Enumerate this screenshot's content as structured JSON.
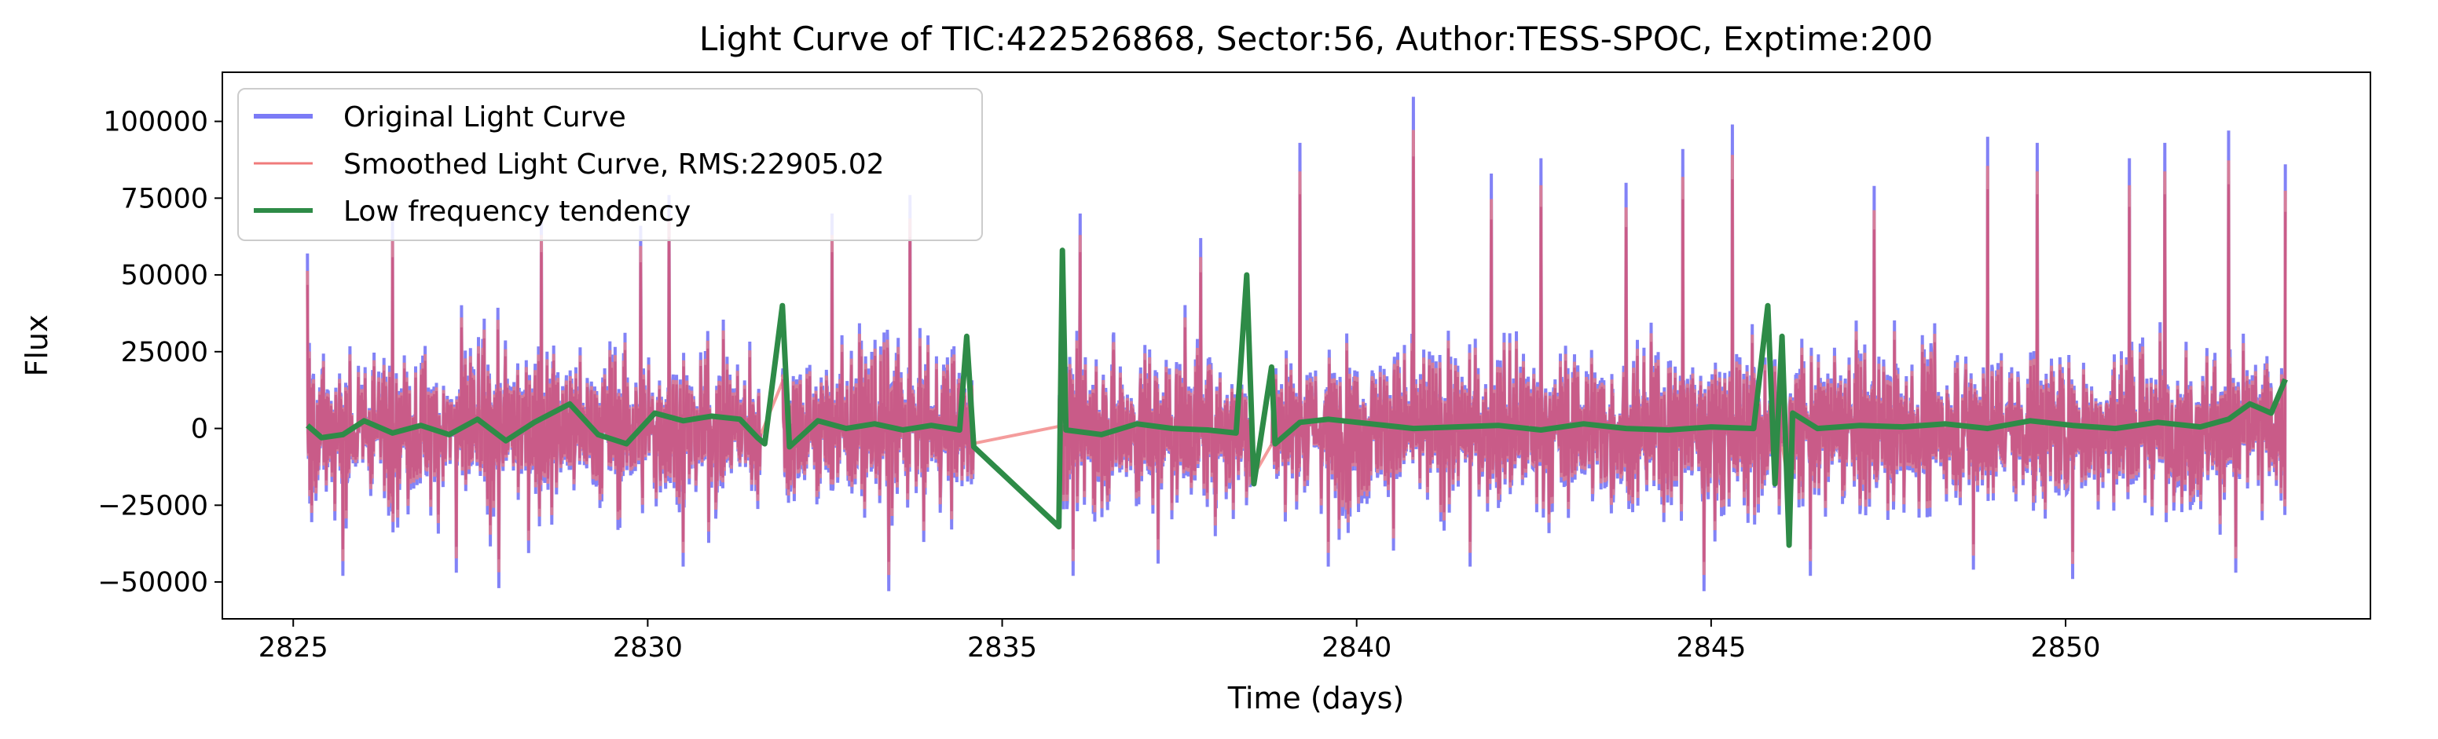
{
  "chart_data": {
    "type": "line",
    "title": "Light Curve of TIC:422526868, Sector:56, Author:TESS-SPOC, Exptime:200",
    "xlabel": "Time (days)",
    "ylabel": "Flux",
    "xlim": [
      2824.0,
      2854.3
    ],
    "ylim": [
      -62000,
      116000
    ],
    "grid": false,
    "legend_position": "top-left",
    "x_ticks": [
      2825,
      2830,
      2835,
      2840,
      2845,
      2850
    ],
    "x_tick_labels": [
      "2825",
      "2830",
      "2835",
      "2840",
      "2845",
      "2850"
    ],
    "y_ticks": [
      -50000,
      -25000,
      0,
      25000,
      50000,
      75000,
      100000
    ],
    "y_tick_labels": [
      "−50000",
      "−25000",
      "0",
      "25000",
      "50000",
      "75000",
      "100000"
    ],
    "segments": [
      [
        2825.2,
        2831.6
      ],
      [
        2831.9,
        2834.6
      ],
      [
        2835.8,
        2838.5
      ],
      [
        2838.8,
        2846.0
      ],
      [
        2846.1,
        2853.1
      ]
    ],
    "series": [
      {
        "name": "Original Light Curve",
        "color": "#7b7bf6",
        "description": "blue line, dense oscillation",
        "amplitude_envelope": {
          "min": -52000,
          "max": 108000
        },
        "peaks": [
          [
            2825.2,
            57000
          ],
          [
            2826.4,
            68000
          ],
          [
            2827.9,
            68000
          ],
          [
            2828.5,
            70000
          ],
          [
            2829.9,
            66000
          ],
          [
            2830.3,
            76000
          ],
          [
            2832.6,
            70000
          ],
          [
            2833.4,
            69000
          ],
          [
            2833.7,
            76000
          ],
          [
            2836.1,
            70000
          ],
          [
            2837.8,
            62000
          ],
          [
            2839.2,
            93000
          ],
          [
            2839.6,
            82000
          ],
          [
            2840.8,
            108000
          ],
          [
            2841.9,
            83000
          ],
          [
            2842.6,
            88000
          ],
          [
            2843.8,
            80000
          ],
          [
            2844.6,
            91000
          ],
          [
            2845.3,
            99000
          ],
          [
            2847.3,
            79000
          ],
          [
            2848.9,
            95000
          ],
          [
            2849.6,
            93000
          ],
          [
            2850.9,
            88000
          ],
          [
            2851.4,
            93000
          ],
          [
            2852.3,
            97000
          ],
          [
            2853.1,
            86000
          ]
        ],
        "troughs": [
          [
            2825.7,
            -48000
          ],
          [
            2827.3,
            -47000
          ],
          [
            2827.9,
            -52000
          ],
          [
            2830.5,
            -45000
          ],
          [
            2833.4,
            -53000
          ],
          [
            2836.0,
            -48000
          ],
          [
            2837.2,
            -44000
          ],
          [
            2839.6,
            -45000
          ],
          [
            2841.6,
            -45000
          ],
          [
            2844.9,
            -53000
          ],
          [
            2846.4,
            -48000
          ],
          [
            2848.7,
            -46000
          ],
          [
            2850.1,
            -49000
          ],
          [
            2852.4,
            -47000
          ]
        ]
      },
      {
        "name": "Smoothed Light Curve, RMS:22905.02",
        "color": "#f07b7b",
        "description": "red thin line, slightly lower amplitude than original"
      },
      {
        "name": "Low frequency tendency",
        "color": "#2e8b47",
        "description": "green thick line near zero",
        "x": [
          2825.2,
          2825.4,
          2825.7,
          2826.0,
          2826.4,
          2826.8,
          2827.2,
          2827.6,
          2828.0,
          2828.4,
          2828.9,
          2829.3,
          2829.7,
          2830.1,
          2830.5,
          2830.9,
          2831.3,
          2831.55,
          2831.65,
          2831.9,
          2832.0,
          2832.4,
          2832.8,
          2833.2,
          2833.6,
          2834.0,
          2834.4,
          2834.5,
          2834.6,
          2835.8,
          2835.85,
          2835.9,
          2836.4,
          2836.9,
          2837.4,
          2837.9,
          2838.3,
          2838.45,
          2838.55,
          2838.8,
          2838.85,
          2839.2,
          2839.6,
          2840.2,
          2840.8,
          2841.4,
          2842.0,
          2842.6,
          2843.2,
          2843.8,
          2844.4,
          2845.0,
          2845.6,
          2845.8,
          2845.9,
          2846.0,
          2846.1,
          2846.15,
          2846.5,
          2847.1,
          2847.7,
          2848.3,
          2848.9,
          2849.5,
          2850.1,
          2850.7,
          2851.3,
          2851.9,
          2852.3,
          2852.6,
          2852.9,
          2853.1
        ],
        "y": [
          1000,
          -3000,
          -2000,
          2500,
          -1500,
          1000,
          -2000,
          3000,
          -4000,
          2000,
          8000,
          -2000,
          -5000,
          5000,
          2500,
          4000,
          3000,
          -3000,
          -5000,
          40000,
          -6000,
          2500,
          0,
          1500,
          -500,
          1000,
          -500,
          30000,
          -6000,
          -32000,
          58000,
          -500,
          -2000,
          1500,
          0,
          -500,
          -1500,
          50000,
          -18000,
          20000,
          -5000,
          2000,
          3000,
          1500,
          0,
          500,
          1000,
          -500,
          1500,
          0,
          -500,
          500,
          0,
          40000,
          -18000,
          30000,
          -38000,
          5000,
          0,
          1000,
          500,
          1500,
          0,
          2500,
          1000,
          0,
          2000,
          500,
          3000,
          8000,
          5000,
          16000
        ]
      }
    ]
  }
}
